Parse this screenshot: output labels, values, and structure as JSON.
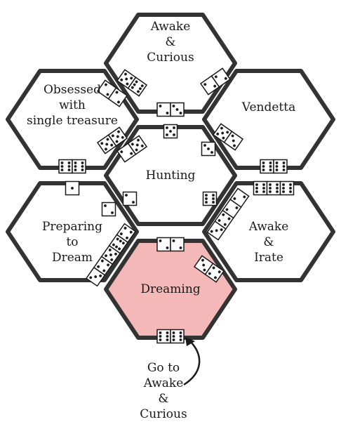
{
  "board": {
    "border_color": "#333333",
    "fill_color": "#ffffff",
    "highlight_color": "#f4b8b8",
    "cells": [
      {
        "id": "awake-curious",
        "label": "Awake\n&\nCurious",
        "highlight": false
      },
      {
        "id": "obsessed",
        "label": "Obsessed\nwith\nsingle treasure",
        "highlight": false
      },
      {
        "id": "vendetta",
        "label": "Vendetta",
        "highlight": false
      },
      {
        "id": "hunting",
        "label": "Hunting",
        "highlight": false
      },
      {
        "id": "preparing-to-dream",
        "label": "Preparing\nto\nDream",
        "highlight": false
      },
      {
        "id": "awake-irate",
        "label": "Awake\n&\nIrate",
        "highlight": false
      },
      {
        "id": "dreaming",
        "label": "Dreaming",
        "highlight": true
      }
    ]
  },
  "transition_note": {
    "label": "Go to\nAwake\n&\nCurious",
    "arrow_icon": "curved-arrow-icon"
  },
  "dice": [
    {
      "name": "die-pair-curious-obsessed-a",
      "faces": [
        2,
        2
      ],
      "orientation": "diagonal-down"
    },
    {
      "name": "die-pair-curious-obsessed-b",
      "faces": [
        5,
        6
      ],
      "orientation": "diagonal-down"
    },
    {
      "name": "die-pair-curious-vendetta",
      "faces": [
        2,
        2
      ],
      "orientation": "diagonal-up"
    },
    {
      "name": "die-pair-curious-hunting",
      "faces": [
        2,
        3
      ],
      "orientation": "horizontal"
    },
    {
      "name": "die-hunting-top",
      "faces": [
        5
      ],
      "orientation": "single"
    },
    {
      "name": "die-pair-obsessed-hunting-a",
      "faces": [
        5,
        5
      ],
      "orientation": "diagonal-up"
    },
    {
      "name": "die-pair-obsessed-hunting-b",
      "faces": [
        2,
        5
      ],
      "orientation": "diagonal-up"
    },
    {
      "name": "die-pair-obsessed-preparing",
      "faces": [
        6,
        6
      ],
      "orientation": "horizontal"
    },
    {
      "name": "die-preparing-top",
      "faces": [
        1
      ],
      "orientation": "single"
    },
    {
      "name": "die-pair-vendetta-hunting-a",
      "faces": [
        5,
        3
      ],
      "orientation": "diagonal-down"
    },
    {
      "name": "die-hunting-right",
      "faces": [
        3
      ],
      "orientation": "single"
    },
    {
      "name": "die-pair-vendetta-irate",
      "faces": [
        6,
        6
      ],
      "orientation": "horizontal"
    },
    {
      "name": "die-pair-irate-top",
      "faces": [
        6,
        6,
        6
      ],
      "orientation": "horizontal"
    },
    {
      "name": "die-hunting-left-a",
      "faces": [
        2
      ],
      "orientation": "single"
    },
    {
      "name": "die-hunting-left-b",
      "faces": [
        2
      ],
      "orientation": "single"
    },
    {
      "name": "die-hunting-right-b",
      "faces": [
        6
      ],
      "orientation": "single"
    },
    {
      "name": "die-stack-hunting-irate",
      "faces": [
        3,
        4,
        2,
        2
      ],
      "orientation": "diagonal-up"
    },
    {
      "name": "die-stack-preparing-dreaming",
      "faces": [
        3,
        4,
        5,
        6,
        4
      ],
      "orientation": "diagonal-up"
    },
    {
      "name": "die-pair-hunting-dreaming",
      "faces": [
        2,
        2
      ],
      "orientation": "horizontal"
    },
    {
      "name": "die-pair-dreaming-irate",
      "faces": [
        3,
        4
      ],
      "orientation": "diagonal-down"
    },
    {
      "name": "die-pair-dreaming-bottom",
      "faces": [
        6,
        6
      ],
      "orientation": "horizontal"
    }
  ]
}
